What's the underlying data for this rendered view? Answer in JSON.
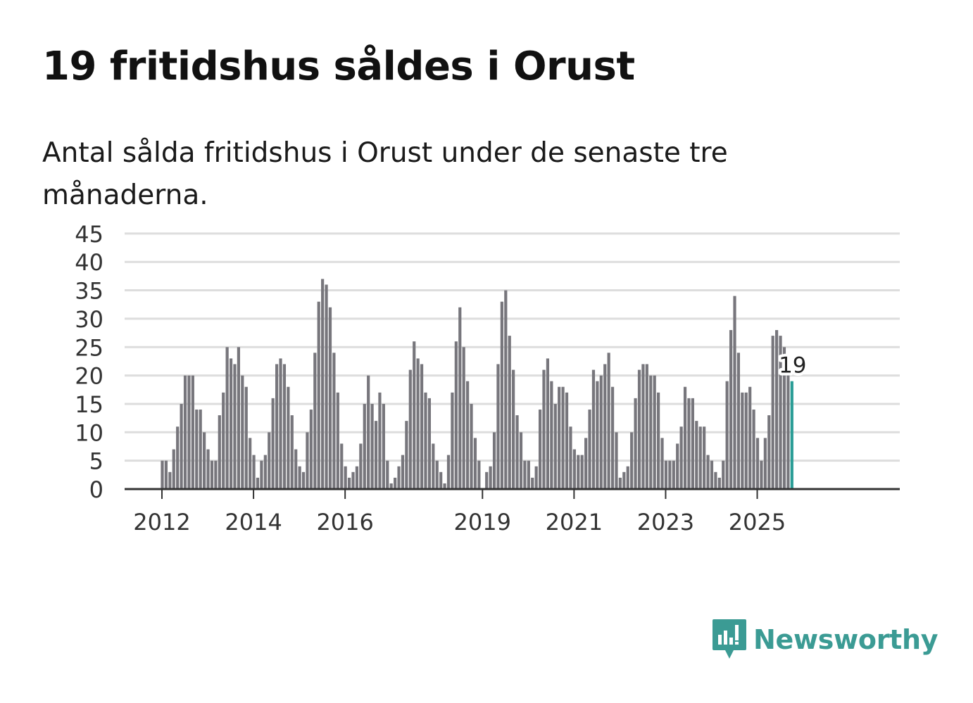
{
  "header": {
    "title": "19 fritidshus såldes i Orust",
    "subtitle": "Antal sålda fritidshus i Orust under de senaste tre månaderna."
  },
  "brand": {
    "name": "Newsworthy",
    "icon": "newsworthy-logo-icon"
  },
  "colors": {
    "bars": "#77767c",
    "highlight": "#2a9d96",
    "grid": "#dddddd",
    "axis": "#333333",
    "brand": "#3b9b94"
  },
  "chart_data": {
    "type": "bar",
    "x_unit": "month",
    "start_month": "2012-01",
    "ylim": [
      0,
      45
    ],
    "yticks": [
      0,
      5,
      10,
      15,
      20,
      25,
      30,
      35,
      40,
      45
    ],
    "xtick_labels": [
      "2012",
      "2014",
      "2016",
      "2019",
      "2021",
      "2023",
      "2025"
    ],
    "grid": true,
    "highlight_label": "19",
    "values": [
      5,
      5,
      3,
      7,
      11,
      15,
      20,
      20,
      20,
      14,
      14,
      10,
      7,
      5,
      5,
      13,
      17,
      25,
      23,
      22,
      25,
      20,
      18,
      9,
      6,
      2,
      5,
      6,
      10,
      16,
      22,
      23,
      22,
      18,
      13,
      7,
      4,
      3,
      10,
      14,
      24,
      33,
      37,
      36,
      32,
      24,
      17,
      8,
      4,
      2,
      3,
      4,
      8,
      15,
      20,
      15,
      12,
      17,
      15,
      5,
      1,
      2,
      4,
      6,
      12,
      21,
      26,
      23,
      22,
      17,
      16,
      8,
      5,
      3,
      1,
      6,
      17,
      26,
      32,
      25,
      19,
      15,
      9,
      5,
      0,
      3,
      4,
      10,
      22,
      33,
      35,
      27,
      21,
      13,
      10,
      5,
      5,
      2,
      4,
      14,
      21,
      23,
      19,
      15,
      18,
      18,
      17,
      11,
      7,
      6,
      6,
      9,
      14,
      21,
      19,
      20,
      22,
      24,
      18,
      10,
      2,
      3,
      4,
      10,
      16,
      21,
      22,
      22,
      20,
      20,
      17,
      9,
      5,
      5,
      5,
      8,
      11,
      18,
      16,
      16,
      12,
      11,
      11,
      6,
      5,
      3,
      2,
      5,
      19,
      28,
      34,
      24,
      17,
      17,
      18,
      14,
      9,
      5,
      9,
      13,
      27,
      28,
      27,
      25,
      21,
      19
    ]
  }
}
